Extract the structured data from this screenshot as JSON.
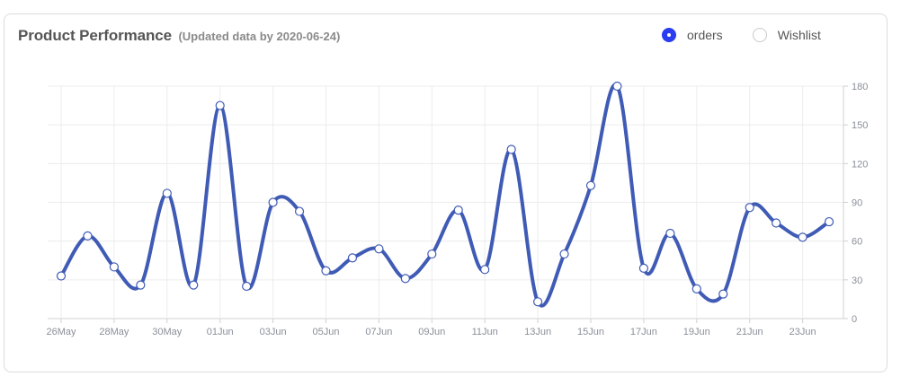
{
  "header": {
    "title": "Product Performance",
    "subtitle": "(Updated data by 2020-06-24)"
  },
  "legend": [
    {
      "label": "orders",
      "marker": "filled",
      "color": "#2a3df0"
    },
    {
      "label": "Wishlist",
      "marker": "hollow",
      "color": "#ffffff"
    }
  ],
  "colors": {
    "line": "#3f5bb5",
    "grid": "#ececec",
    "axis": "#d0d0d0",
    "point_fill": "#ffffff",
    "point_stroke": "#3f5bb5"
  },
  "chart_data": {
    "type": "line",
    "title": "Product Performance",
    "subtitle": "(Updated data by 2020-06-24)",
    "x": [
      "26May",
      "27May",
      "28May",
      "29May",
      "30May",
      "31May",
      "01Jun",
      "02Jun",
      "03Jun",
      "04Jun",
      "05Jun",
      "06Jun",
      "07Jun",
      "08Jun",
      "09Jun",
      "10Jun",
      "11Jun",
      "12Jun",
      "13Jun",
      "14Jun",
      "15Jun",
      "16Jun",
      "17Jun",
      "18Jun",
      "19Jun",
      "20Jun",
      "21Jun",
      "22Jun",
      "23Jun",
      "24Jun"
    ],
    "x_tick_labels": [
      "26May",
      "28May",
      "30May",
      "01Jun",
      "03Jun",
      "05Jun",
      "07Jun",
      "09Jun",
      "11Jun",
      "13Jun",
      "15Jun",
      "17Jun",
      "19Jun",
      "21Jun",
      "23Jun"
    ],
    "series": [
      {
        "name": "orders",
        "values": [
          33,
          64,
          40,
          26,
          97,
          26,
          165,
          25,
          90,
          83,
          37,
          47,
          54,
          31,
          50,
          84,
          38,
          131,
          13,
          50,
          103,
          180,
          39,
          66,
          23,
          19,
          86,
          74,
          63,
          75
        ]
      }
    ],
    "y_ticks": [
      0,
      30,
      60,
      90,
      120,
      150,
      180
    ],
    "ylim": [
      0,
      180
    ],
    "y_axis_side": "right",
    "grid": true,
    "legend_position": "top-right",
    "smooth": true
  }
}
